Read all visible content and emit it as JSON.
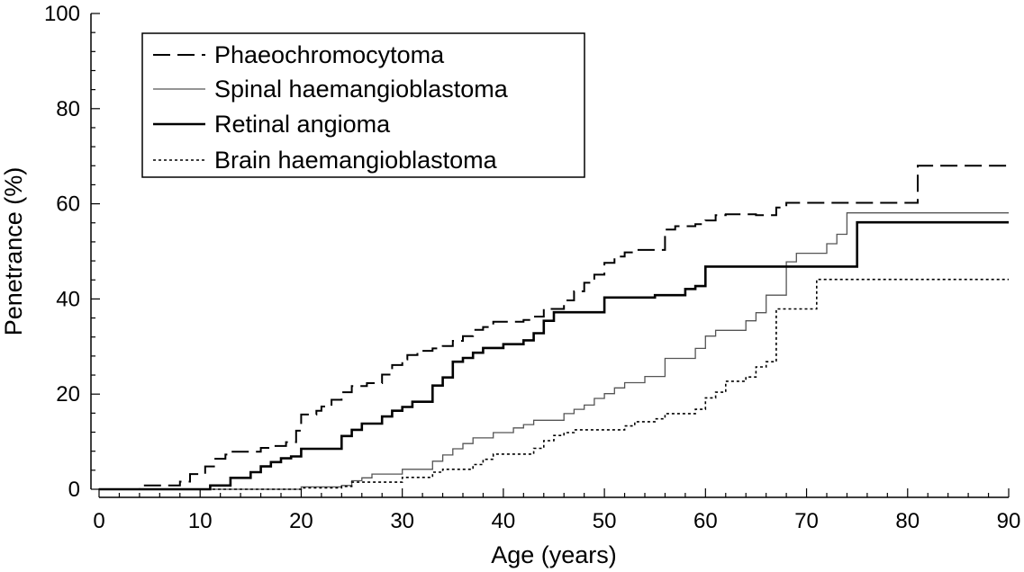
{
  "chart_data": {
    "type": "line",
    "step": true,
    "title": "",
    "xlabel": "Age (years)",
    "ylabel": "Penetrance (%)",
    "xlim": [
      0,
      90
    ],
    "ylim": [
      0,
      100
    ],
    "xticks": [
      0,
      10,
      20,
      30,
      40,
      50,
      60,
      70,
      80,
      90
    ],
    "yticks": [
      0,
      20,
      40,
      60,
      80,
      100
    ],
    "grid": false,
    "legend_position": "top-left",
    "series": [
      {
        "name": "Phaeochromocytoma",
        "style": "dashed",
        "color": "#000000",
        "points": [
          [
            0,
            0
          ],
          [
            4,
            0.8
          ],
          [
            8,
            1.6
          ],
          [
            9,
            3.2
          ],
          [
            10.5,
            4.8
          ],
          [
            11.5,
            6.4
          ],
          [
            12.5,
            7.3
          ],
          [
            13,
            7.9
          ],
          [
            16,
            8.7
          ],
          [
            17,
            9.1
          ],
          [
            18.5,
            9.9
          ],
          [
            19.5,
            12.3
          ],
          [
            20,
            15.7
          ],
          [
            21.5,
            16.5
          ],
          [
            22,
            17.4
          ],
          [
            23,
            18.8
          ],
          [
            24,
            20.4
          ],
          [
            25,
            21.7
          ],
          [
            26.5,
            22.3
          ],
          [
            28,
            24.1
          ],
          [
            29,
            26.1
          ],
          [
            30,
            27.3
          ],
          [
            30.5,
            28.2
          ],
          [
            31.5,
            29.1
          ],
          [
            33,
            29.6
          ],
          [
            34,
            30.1
          ],
          [
            35,
            31.2
          ],
          [
            36,
            32.2
          ],
          [
            37,
            33.5
          ],
          [
            38,
            34.1
          ],
          [
            39,
            35.2
          ],
          [
            42,
            35.6
          ],
          [
            43,
            36.3
          ],
          [
            44,
            37.9
          ],
          [
            46,
            39.7
          ],
          [
            47,
            41.6
          ],
          [
            48,
            43.4
          ],
          [
            49,
            45.1
          ],
          [
            50,
            47.6
          ],
          [
            51,
            48.9
          ],
          [
            52,
            49.8
          ],
          [
            53,
            50.3
          ],
          [
            56,
            54.6
          ],
          [
            57,
            55.3
          ],
          [
            59,
            55.7
          ],
          [
            60,
            56.5
          ],
          [
            61,
            57.6
          ],
          [
            62,
            57.8
          ],
          [
            65,
            57.6
          ],
          [
            67,
            59.2
          ],
          [
            68,
            60.2
          ],
          [
            81,
            68
          ],
          [
            90,
            68
          ]
        ]
      },
      {
        "name": "Spinal haemangioblastoma",
        "style": "thin",
        "color": "#555555",
        "points": [
          [
            0,
            0
          ],
          [
            20,
            0.5
          ],
          [
            24,
            0.8
          ],
          [
            25,
            1.8
          ],
          [
            26,
            2.4
          ],
          [
            27,
            3.2
          ],
          [
            30,
            4.2
          ],
          [
            33,
            5.9
          ],
          [
            34,
            7.2
          ],
          [
            35,
            8.5
          ],
          [
            36,
            9.6
          ],
          [
            37,
            10.8
          ],
          [
            39,
            11.9
          ],
          [
            41,
            12.9
          ],
          [
            42,
            13.6
          ],
          [
            43,
            14.5
          ],
          [
            46,
            15.9
          ],
          [
            47,
            16.8
          ],
          [
            48,
            17.7
          ],
          [
            49,
            19.1
          ],
          [
            50,
            20.1
          ],
          [
            51,
            21.3
          ],
          [
            52,
            22.4
          ],
          [
            54,
            23.7
          ],
          [
            56,
            27.5
          ],
          [
            59,
            29.6
          ],
          [
            60,
            32.2
          ],
          [
            61,
            33.4
          ],
          [
            64,
            35.4
          ],
          [
            65,
            37.1
          ],
          [
            66,
            40.8
          ],
          [
            68,
            47.8
          ],
          [
            69,
            49.6
          ],
          [
            72,
            51.6
          ],
          [
            73,
            53.6
          ],
          [
            74,
            58.1
          ],
          [
            90,
            58.1
          ]
        ]
      },
      {
        "name": "Retinal angioma",
        "style": "thick",
        "color": "#000000",
        "points": [
          [
            0,
            0
          ],
          [
            11,
            0.8
          ],
          [
            13,
            2.4
          ],
          [
            15,
            3.6
          ],
          [
            16,
            4.8
          ],
          [
            17,
            5.7
          ],
          [
            18,
            6.5
          ],
          [
            19,
            6.9
          ],
          [
            20,
            8.5
          ],
          [
            24,
            11.2
          ],
          [
            25,
            12.5
          ],
          [
            26,
            13.8
          ],
          [
            28,
            15.3
          ],
          [
            29,
            16.5
          ],
          [
            30,
            17.3
          ],
          [
            31,
            18.4
          ],
          [
            33,
            21.8
          ],
          [
            34,
            23.5
          ],
          [
            35,
            26.8
          ],
          [
            36,
            27.6
          ],
          [
            37,
            28.7
          ],
          [
            38,
            29.7
          ],
          [
            40,
            30.5
          ],
          [
            42,
            31.3
          ],
          [
            43,
            32.8
          ],
          [
            44,
            35.4
          ],
          [
            45,
            37.2
          ],
          [
            50,
            40.3
          ],
          [
            55,
            40.8
          ],
          [
            58,
            42.1
          ],
          [
            59,
            42.7
          ],
          [
            60,
            46.8
          ],
          [
            75,
            56.1
          ],
          [
            90,
            56.1
          ]
        ]
      },
      {
        "name": "Brain haemangioblastoma",
        "style": "dotted",
        "color": "#000000",
        "points": [
          [
            0,
            0
          ],
          [
            20,
            0.3
          ],
          [
            24,
            0.6
          ],
          [
            25,
            1.5
          ],
          [
            30,
            2.5
          ],
          [
            33,
            3.6
          ],
          [
            34,
            4.2
          ],
          [
            37,
            5.2
          ],
          [
            38,
            6.3
          ],
          [
            39,
            7.4
          ],
          [
            43,
            8.6
          ],
          [
            44,
            10.2
          ],
          [
            45,
            11.3
          ],
          [
            46,
            11.9
          ],
          [
            47,
            12.5
          ],
          [
            52,
            13.3
          ],
          [
            53,
            14.2
          ],
          [
            55,
            14.8
          ],
          [
            56,
            15.9
          ],
          [
            59,
            16.8
          ],
          [
            60,
            19.2
          ],
          [
            61,
            20.4
          ],
          [
            62,
            22.7
          ],
          [
            64,
            23.6
          ],
          [
            65,
            25.7
          ],
          [
            66,
            26.8
          ],
          [
            67,
            37.9
          ],
          [
            71,
            44.1
          ],
          [
            90,
            44.1
          ]
        ]
      }
    ]
  }
}
